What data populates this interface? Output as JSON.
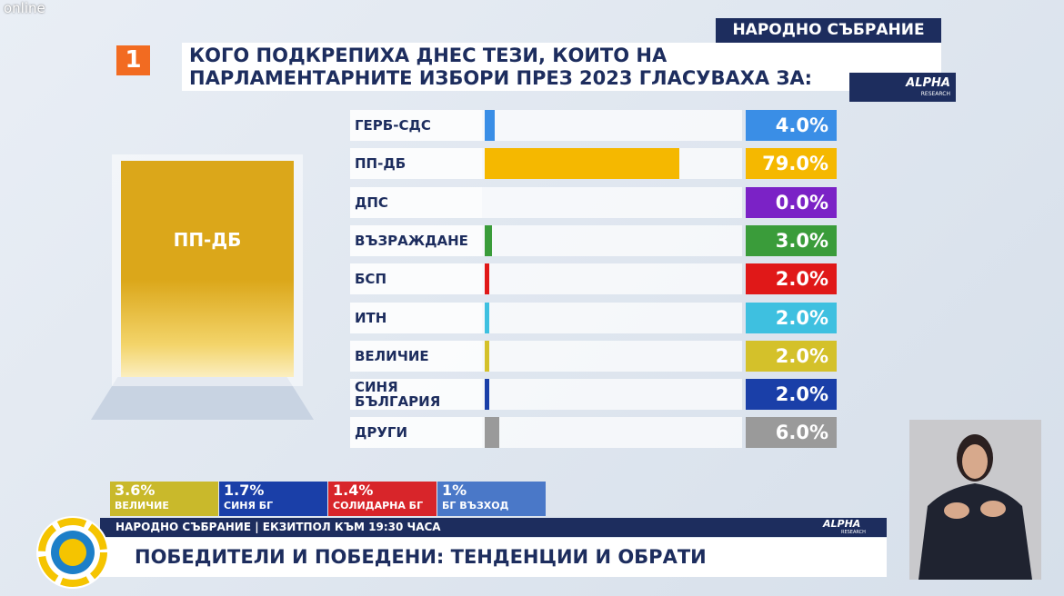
{
  "screen": {
    "watermark": "online",
    "channel_logo": "1"
  },
  "header": {
    "section": "НАРОДНО СЪБРАНИЕ",
    "source_logo": "ALPHA",
    "source_sub": "RESEARCH"
  },
  "chart_data": {
    "type": "bar",
    "orientation": "horizontal",
    "title": "КОГО ПОДКРЕПИХА ДНЕС ТЕЗИ, КОИТО НА ПАРЛАМЕНТАРНИТЕ ИЗБОРИ ПРЕЗ 2023 ГЛАСУВАХА ЗА:",
    "categories": [
      "ГЕРБ-СДС",
      "ПП-ДБ",
      "ДПС",
      "ВЪЗРАЖДАНЕ",
      "БСП",
      "ИТН",
      "ВЕЛИЧИЕ",
      "СИНЯ БЪЛГАРИЯ",
      "ДРУГИ"
    ],
    "values": [
      4,
      79,
      0,
      3,
      2,
      2,
      2,
      2,
      6
    ],
    "value_labels": [
      "4.0%",
      "79.0%",
      "0.0%",
      "3.0%",
      "2.0%",
      "2.0%",
      "2.0%",
      "2.0%",
      "6.0%"
    ],
    "colors": [
      "#3a8ee6",
      "#f5b800",
      "#7b22c6",
      "#3a9c3a",
      "#e01818",
      "#3ec0e0",
      "#d4c12a",
      "#1a3fa8",
      "#9a9a9a"
    ]
  },
  "highlight": {
    "label": "ПП-ДБ"
  },
  "results_strip": [
    {
      "value": "3.6%",
      "label": "ВЕЛИЧИЕ",
      "color": "#c9b92b"
    },
    {
      "value": "1.7%",
      "label": "СИНЯ БГ",
      "color": "#1a3fa8"
    },
    {
      "value": "1.4%",
      "label": "СОЛИДАРНА БГ",
      "color": "#d8252a"
    },
    {
      "value": "1%",
      "label": "БГ ВЪЗХОД",
      "color": "#4a78c8"
    }
  ],
  "ticker": {
    "text": "НАРОДНО СЪБРАНИЕ | ЕКЗИТПОЛ КЪМ 19:30 ЧАСА",
    "logo": "ALPHA",
    "logo_sub": "RESEARCH",
    "headline": "ПОБЕДИТЕЛИ И ПОБЕДЕНИ: ТЕНДЕНЦИИ И ОБРАТИ"
  }
}
